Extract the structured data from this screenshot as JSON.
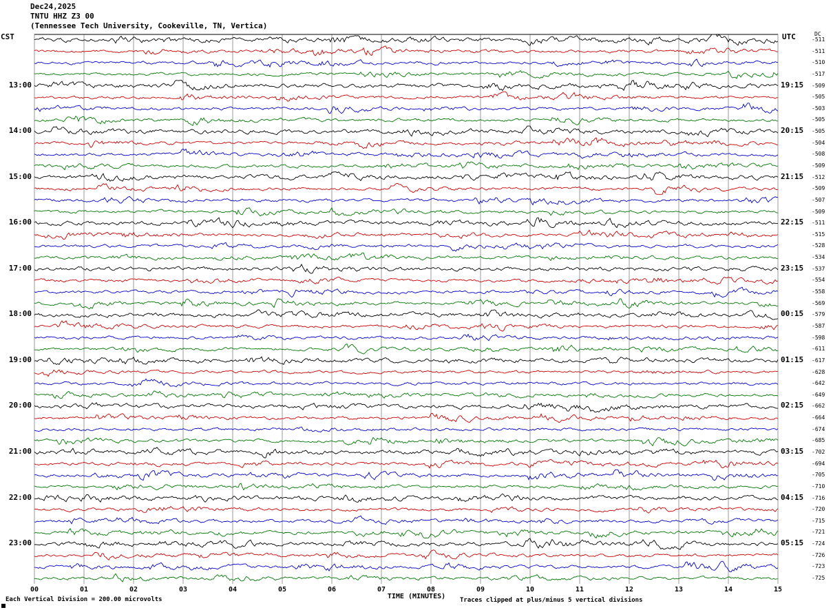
{
  "header": {
    "line1": "Dec24,2025",
    "line2": "TNTU HHZ Z3 00",
    "line3": "(Tennessee Tech University, Cookeville, TN, Vertica)"
  },
  "axes": {
    "left_timezone": "CST",
    "right_timezone": "UTC",
    "dc_header": "DC",
    "xlabel": "TIME (MINUTES)",
    "x_ticks": [
      "00",
      "01",
      "02",
      "03",
      "04",
      "05",
      "06",
      "07",
      "08",
      "09",
      "10",
      "11",
      "12",
      "13",
      "14",
      "15"
    ]
  },
  "footer": {
    "left": "Each Vertical Division =  200.00 microvolts",
    "right": "Traces clipped at plus/minus 5 vertical divisions"
  },
  "chart_data": {
    "type": "line",
    "description": "Helicorder seismogram: 48 fifteen-minute traces, colors cycling black/red/blue/green, amplitude clipped at plus/minus 5 vertical divisions (200.00 microvolts per division)",
    "x_range_minutes": [
      0,
      15
    ],
    "grid_color": "#999999",
    "colors": [
      "#000000",
      "#cc0000",
      "#0000cc",
      "#007700"
    ],
    "rows": [
      {
        "cst": "",
        "utc": "",
        "dc": "-511"
      },
      {
        "cst": "",
        "utc": "",
        "dc": "-511"
      },
      {
        "cst": "",
        "utc": "",
        "dc": "-510"
      },
      {
        "cst": "",
        "utc": "",
        "dc": "-517"
      },
      {
        "cst": "13:00",
        "utc": "19:15",
        "dc": "-509"
      },
      {
        "cst": "",
        "utc": "",
        "dc": "-505"
      },
      {
        "cst": "",
        "utc": "",
        "dc": "-503"
      },
      {
        "cst": "",
        "utc": "",
        "dc": "-505"
      },
      {
        "cst": "14:00",
        "utc": "20:15",
        "dc": "-505"
      },
      {
        "cst": "",
        "utc": "",
        "dc": "-504"
      },
      {
        "cst": "",
        "utc": "",
        "dc": "-508"
      },
      {
        "cst": "",
        "utc": "",
        "dc": "-509"
      },
      {
        "cst": "15:00",
        "utc": "21:15",
        "dc": "-512"
      },
      {
        "cst": "",
        "utc": "",
        "dc": "-509"
      },
      {
        "cst": "",
        "utc": "",
        "dc": "-507"
      },
      {
        "cst": "",
        "utc": "",
        "dc": "-509"
      },
      {
        "cst": "16:00",
        "utc": "22:15",
        "dc": "-511"
      },
      {
        "cst": "",
        "utc": "",
        "dc": "-515"
      },
      {
        "cst": "",
        "utc": "",
        "dc": "-528"
      },
      {
        "cst": "",
        "utc": "",
        "dc": "-534"
      },
      {
        "cst": "17:00",
        "utc": "23:15",
        "dc": "-537"
      },
      {
        "cst": "",
        "utc": "",
        "dc": "-554"
      },
      {
        "cst": "",
        "utc": "",
        "dc": "-558"
      },
      {
        "cst": "",
        "utc": "",
        "dc": "-569"
      },
      {
        "cst": "18:00",
        "utc": "00:15",
        "dc": "-579"
      },
      {
        "cst": "",
        "utc": "",
        "dc": "-587"
      },
      {
        "cst": "",
        "utc": "",
        "dc": "-598"
      },
      {
        "cst": "",
        "utc": "",
        "dc": "-611"
      },
      {
        "cst": "19:00",
        "utc": "01:15",
        "dc": "-617"
      },
      {
        "cst": "",
        "utc": "",
        "dc": "-628"
      },
      {
        "cst": "",
        "utc": "",
        "dc": "-642"
      },
      {
        "cst": "",
        "utc": "",
        "dc": "-649"
      },
      {
        "cst": "20:00",
        "utc": "02:15",
        "dc": "-662"
      },
      {
        "cst": "",
        "utc": "",
        "dc": "-664"
      },
      {
        "cst": "",
        "utc": "",
        "dc": "-674"
      },
      {
        "cst": "",
        "utc": "",
        "dc": "-685"
      },
      {
        "cst": "21:00",
        "utc": "03:15",
        "dc": "-702"
      },
      {
        "cst": "",
        "utc": "",
        "dc": "-694"
      },
      {
        "cst": "",
        "utc": "",
        "dc": "-705"
      },
      {
        "cst": "",
        "utc": "",
        "dc": "-710"
      },
      {
        "cst": "22:00",
        "utc": "04:15",
        "dc": "-716"
      },
      {
        "cst": "",
        "utc": "",
        "dc": "-720"
      },
      {
        "cst": "",
        "utc": "",
        "dc": "-715"
      },
      {
        "cst": "",
        "utc": "",
        "dc": "-721"
      },
      {
        "cst": "23:00",
        "utc": "05:15",
        "dc": "-724"
      },
      {
        "cst": "",
        "utc": "",
        "dc": "-726"
      },
      {
        "cst": "",
        "utc": "",
        "dc": "-723"
      },
      {
        "cst": "",
        "utc": "",
        "dc": "-725"
      }
    ]
  }
}
